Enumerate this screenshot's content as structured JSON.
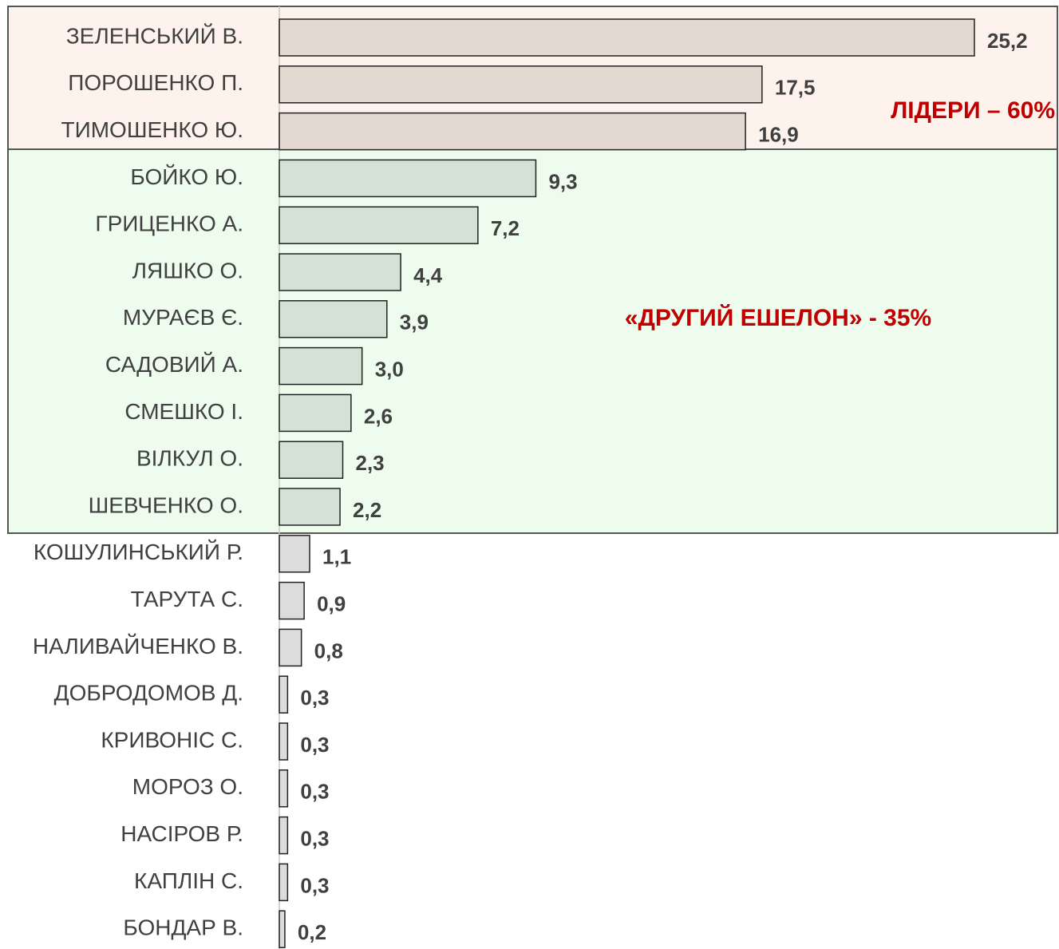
{
  "chart_data": {
    "type": "bar",
    "orientation": "horizontal",
    "categories": [
      "ЗЕЛЕНСЬКИЙ В.",
      "ПОРОШЕНКО П.",
      "ТИМОШЕНКО Ю.",
      "БОЙКО Ю.",
      "ГРИЦЕНКО А.",
      "ЛЯШКО О.",
      "МУРАЄВ Є.",
      "САДОВИЙ А.",
      "СМЕШКО І.",
      "ВІЛКУЛ О.",
      "ШЕВЧЕНКО О.",
      "КОШУЛИНСЬКИЙ Р.",
      "ТАРУТА С.",
      "НАЛИВАЙЧЕНКО В.",
      "ДОБРОДОМОВ Д.",
      "КРИВОНІС С.",
      "МОРОЗ О.",
      "НАСІРОВ Р.",
      "КАПЛІН С.",
      "БОНДАР В."
    ],
    "values": [
      25.2,
      17.5,
      16.9,
      9.3,
      7.2,
      4.4,
      3.9,
      3.0,
      2.6,
      2.3,
      2.2,
      1.1,
      0.9,
      0.8,
      0.3,
      0.3,
      0.3,
      0.3,
      0.3,
      0.2
    ],
    "value_labels": [
      "25,2",
      "17,5",
      "16,9",
      "9,3",
      "7,2",
      "4,4",
      "3,9",
      "3,0",
      "2,6",
      "2,3",
      "2,2",
      "1,1",
      "0,9",
      "0,8",
      "0,3",
      "0,3",
      "0,3",
      "0,3",
      "0,3",
      "0,2"
    ],
    "colors": [
      "#e3d9d1",
      "#e3d9d1",
      "#e3d9d1",
      "#d3e2d4",
      "#d3e2d4",
      "#d3e2d4",
      "#d3e2d4",
      "#d3e2d4",
      "#d3e2d4",
      "#d3e2d4",
      "#d3e2d4",
      "#dcdcdc",
      "#dcdcdc",
      "#dcdcdc",
      "#dcdcdc",
      "#dcdcdc",
      "#dcdcdc",
      "#dcdcdc",
      "#dcdcdc",
      "#dcdcdc"
    ],
    "annotations": [
      "ЛІДЕРИ – 60%",
      "«ДРУГИЙ ЕШЕЛОН» - 35%"
    ]
  }
}
